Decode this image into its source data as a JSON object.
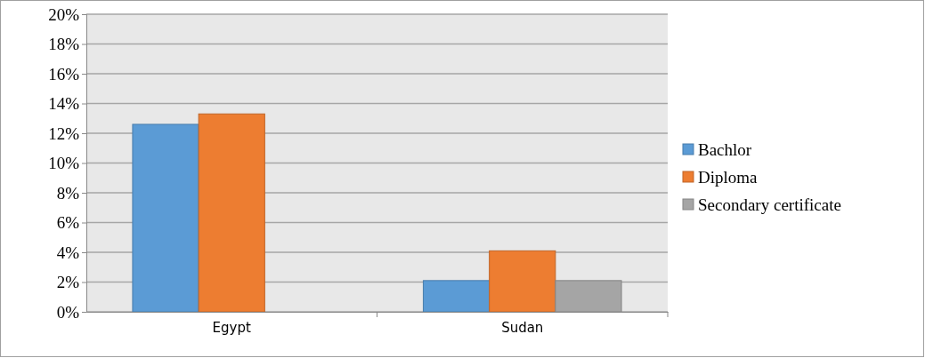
{
  "chart_data": {
    "type": "bar",
    "categories": [
      "Egypt",
      "Sudan"
    ],
    "series": [
      {
        "name": "Bachlor",
        "color": "#5b9bd5",
        "values": [
          12.6,
          2.1
        ]
      },
      {
        "name": "Diploma",
        "color": "#ed7d31",
        "values": [
          13.3,
          4.1
        ]
      },
      {
        "name": "Secondary certificate",
        "color": "#a5a5a5",
        "values": [
          null,
          2.1
        ]
      }
    ],
    "ylim": [
      0,
      20
    ],
    "yticks": [
      {
        "value": 0,
        "label": "0%"
      },
      {
        "value": 2,
        "label": "2%"
      },
      {
        "value": 4,
        "label": "4%"
      },
      {
        "value": 6,
        "label": "6%"
      },
      {
        "value": 8,
        "label": "8%"
      },
      {
        "value": 10,
        "label": "10%"
      },
      {
        "value": 12,
        "label": "12%"
      },
      {
        "value": 14,
        "label": "14%"
      },
      {
        "value": 16,
        "label": "16%"
      },
      {
        "value": 18,
        "label": "18%"
      },
      {
        "value": 20,
        "label": "20%"
      }
    ],
    "grid": "y",
    "legend": "right"
  }
}
